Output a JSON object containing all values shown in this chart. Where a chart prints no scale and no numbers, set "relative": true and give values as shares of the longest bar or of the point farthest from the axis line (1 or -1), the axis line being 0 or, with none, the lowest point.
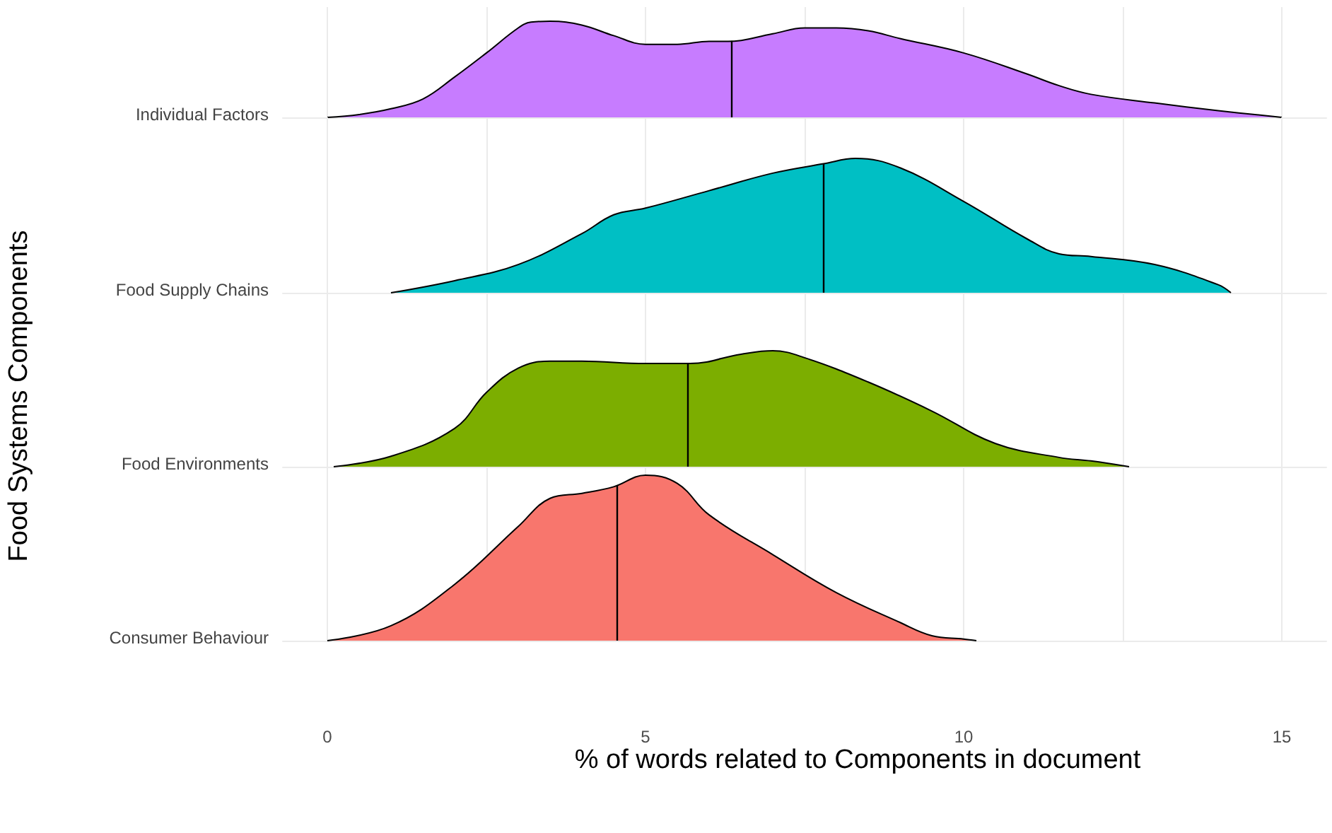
{
  "chart_data": [
    {
      "type": "area",
      "relative": true,
      "ylabel": "Food Systems Components",
      "xlim": [
        -0.7,
        15.7
      ],
      "xticks": [
        0,
        {
          "value": 2.5,
          "label": null
        },
        5,
        {
          "value": 7.5,
          "label": null
        },
        10,
        {
          "value": 12.5,
          "label": null
        },
        15
      ],
      "tick_labels": false,
      "grid": "x",
      "x": [
        0,
        0.5,
        1,
        1.5,
        2,
        2.5,
        3,
        3.2,
        3.5,
        4,
        4.5,
        5,
        5.5,
        6,
        6.3,
        7,
        7.5,
        8,
        8.5,
        9,
        10,
        11,
        11.5,
        12,
        13,
        14,
        15
      ],
      "series": [
        {
          "name": "Individual Factors",
          "color": "#c77cff",
          "values": [
            0,
            0.03,
            0.09,
            0.19,
            0.42,
            0.67,
            0.93,
            0.99,
            1,
            0.96,
            0.85,
            0.76,
            0.76,
            0.79,
            0.79,
            0.87,
            0.93,
            0.93,
            0.9,
            0.82,
            0.67,
            0.45,
            0.33,
            0.24,
            0.15,
            0.07,
            0
          ]
        }
      ],
      "ref_lines": [
        {
          "axis": "x",
          "value": 6.35,
          "color": "#000000"
        }
      ]
    },
    {
      "type": "area",
      "relative": true,
      "xlim": [
        -0.7,
        15.7
      ],
      "xticks": [
        0,
        {
          "value": 2.5,
          "label": null
        },
        5,
        {
          "value": 7.5,
          "label": null
        },
        10,
        {
          "value": 12.5,
          "label": null
        },
        15
      ],
      "tick_labels": false,
      "grid": "x",
      "x": [
        1,
        2,
        3,
        4,
        4.5,
        5,
        6,
        7,
        7.8,
        8.3,
        9,
        10,
        11,
        11.5,
        12,
        13,
        14,
        14.2
      ],
      "series": [
        {
          "name": "Food Supply Chains",
          "color": "#00bfc4",
          "values": [
            0,
            0.09,
            0.21,
            0.44,
            0.58,
            0.63,
            0.76,
            0.89,
            0.96,
            1,
            0.93,
            0.68,
            0.4,
            0.29,
            0.27,
            0.21,
            0.06,
            0
          ]
        }
      ],
      "ref_lines": [
        {
          "axis": "x",
          "value": 7.8,
          "color": "#000000"
        }
      ]
    },
    {
      "type": "area",
      "relative": true,
      "xlim": [
        -0.7,
        15.7
      ],
      "xticks": [
        0,
        {
          "value": 2.5,
          "label": null
        },
        5,
        {
          "value": 7.5,
          "label": null
        },
        10,
        {
          "value": 12.5,
          "label": null
        },
        15
      ],
      "tick_labels": false,
      "grid": "x",
      "x": [
        0.1,
        1,
        2,
        2.5,
        3,
        3.5,
        4,
        5,
        5.7,
        6.5,
        7,
        7.5,
        8.5,
        9.5,
        10.5,
        11.5,
        12,
        12.6
      ],
      "series": [
        {
          "name": "Food Environments",
          "color": "#7cae00",
          "values": [
            0,
            0.09,
            0.33,
            0.64,
            0.85,
            0.91,
            0.91,
            0.89,
            0.89,
            0.97,
            1,
            0.94,
            0.73,
            0.48,
            0.2,
            0.08,
            0.05,
            0
          ]
        }
      ],
      "ref_lines": [
        {
          "axis": "x",
          "value": 5.65,
          "color": "#000000"
        }
      ]
    },
    {
      "type": "area",
      "relative": true,
      "xlabel": "% of words related to Components in document",
      "xlim": [
        -0.7,
        15.7
      ],
      "xticks": [
        0,
        {
          "value": 2.5,
          "label": null
        },
        5,
        {
          "value": 7.5,
          "label": null
        },
        10,
        {
          "value": 12.5,
          "label": null
        },
        15
      ],
      "tick_labels": "x",
      "grid": "x",
      "x": [
        0,
        1,
        2,
        3,
        3.5,
        4,
        4.5,
        5,
        5.5,
        6,
        7,
        8,
        9,
        9.5,
        10,
        10.2
      ],
      "series": [
        {
          "name": "Consumer Behaviour",
          "color": "#f8766d",
          "values": [
            0,
            0.09,
            0.34,
            0.69,
            0.86,
            0.89,
            0.93,
            1,
            0.95,
            0.76,
            0.52,
            0.29,
            0.11,
            0.03,
            0.01,
            0
          ]
        }
      ],
      "ref_lines": [
        {
          "axis": "x",
          "value": 4.55,
          "color": "#000000"
        }
      ]
    }
  ]
}
